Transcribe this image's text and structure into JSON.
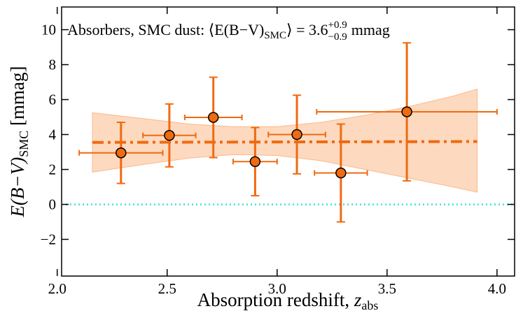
{
  "chart_data": {
    "type": "errorbar",
    "annotation": [
      "Absorbers, SMC dust: ⟨E(B−V)",
      "SMC",
      "⟩ = 3.6",
      "+0.9",
      "−0.9",
      "mmag"
    ],
    "xlabel": [
      "Absorption redshift, ",
      "z",
      "abs"
    ],
    "ylabel": [
      "E(B−V)",
      "SMC",
      " [mmag]"
    ],
    "xlim": [
      2.02,
      4.08
    ],
    "ylim": [
      -4.1,
      11.3
    ],
    "xticks": [
      {
        "value": 2,
        "label": "2.0"
      },
      2.5,
      {
        "value": 3,
        "label": "3.0"
      },
      3.5,
      {
        "value": 4,
        "label": "4.0"
      }
    ],
    "yticks": [
      {
        "value": -2,
        "label": "−2"
      },
      0,
      2,
      4,
      6,
      8,
      10
    ],
    "hline": {
      "value": 0,
      "color": "#40e0d0"
    },
    "band": {
      "color": "#fbb98a",
      "x": [
        2.16,
        2.4,
        2.6,
        2.8,
        3.0,
        3.2,
        3.4,
        3.6,
        3.8,
        3.91
      ],
      "lower": [
        1.85,
        2.3,
        2.65,
        2.85,
        2.8,
        2.5,
        2.0,
        1.5,
        1.0,
        0.7
      ],
      "upper": [
        5.25,
        4.9,
        4.6,
        4.45,
        4.45,
        4.7,
        5.1,
        5.6,
        6.2,
        6.6
      ]
    },
    "mean_line": {
      "color": "#f06a0f",
      "x": [
        2.16,
        3.91
      ],
      "values": [
        3.55,
        3.6
      ]
    },
    "series": [
      {
        "color": "#f06a0f",
        "x": [
          2.29,
          2.51,
          2.71,
          2.9,
          3.09,
          3.29,
          3.59
        ],
        "xerr": [
          0.19,
          0.12,
          0.13,
          0.1,
          0.13,
          0.12,
          0.41
        ],
        "values": [
          2.95,
          3.95,
          4.98,
          2.45,
          4.0,
          1.8,
          5.3
        ],
        "yerr": [
          1.75,
          1.8,
          2.3,
          1.95,
          2.25,
          2.8,
          3.95
        ]
      }
    ]
  }
}
